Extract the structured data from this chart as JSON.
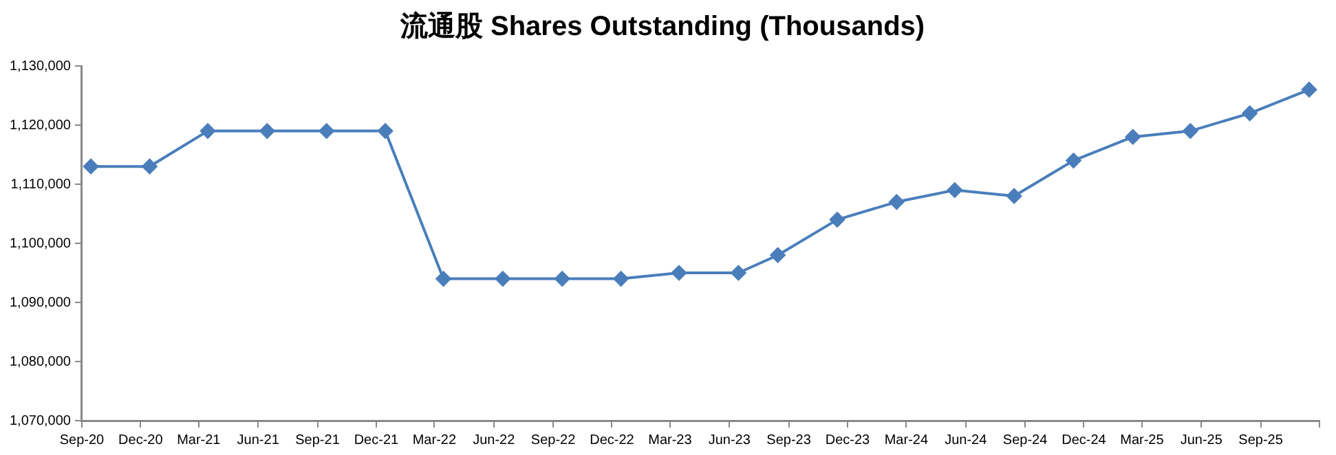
{
  "chart_data": {
    "type": "line",
    "title": "流通股 Shares Outstanding (Thousands)",
    "x": [
      "2020-09-15",
      "2020-12-15",
      "2021-03-15",
      "2021-06-15",
      "2021-09-15",
      "2021-12-15",
      "2022-03-15",
      "2022-06-15",
      "2022-09-15",
      "2022-12-15",
      "2023-03-15",
      "2023-06-15",
      "2023-08-15",
      "2023-11-15",
      "2024-02-15",
      "2024-05-15",
      "2024-08-15",
      "2024-11-15",
      "2025-02-15",
      "2025-05-15",
      "2025-08-15",
      "2025-11-15"
    ],
    "series": [
      {
        "color": "#4a7ebb",
        "values": [
          1113000,
          1113000,
          1119000,
          1119000,
          1119000,
          1119000,
          1094000,
          1094000,
          1094000,
          1094000,
          1095000,
          1095000,
          1098000,
          1104000,
          1107000,
          1109000,
          1108000,
          1114000,
          1118000,
          1119000,
          1122000,
          1126000
        ]
      }
    ],
    "xlim": [
      "2020-09-01",
      "2025-12-01"
    ],
    "xticks": [
      {
        "value": "2020-09-01",
        "label": "Sep-20"
      },
      {
        "value": "2020-12-01",
        "label": "Dec-20"
      },
      {
        "value": "2021-03-01",
        "label": "Mar-21"
      },
      {
        "value": "2021-06-01",
        "label": "Jun-21"
      },
      {
        "value": "2021-09-01",
        "label": "Sep-21"
      },
      {
        "value": "2021-12-01",
        "label": "Dec-21"
      },
      {
        "value": "2022-03-01",
        "label": "Mar-22"
      },
      {
        "value": "2022-06-01",
        "label": "Jun-22"
      },
      {
        "value": "2022-09-01",
        "label": "Sep-22"
      },
      {
        "value": "2022-12-01",
        "label": "Dec-22"
      },
      {
        "value": "2023-03-01",
        "label": "Mar-23"
      },
      {
        "value": "2023-06-01",
        "label": "Jun-23"
      },
      {
        "value": "2023-09-01",
        "label": "Sep-23"
      },
      {
        "value": "2023-12-01",
        "label": "Dec-23"
      },
      {
        "value": "2024-03-01",
        "label": "Mar-24"
      },
      {
        "value": "2024-06-01",
        "label": "Jun-24"
      },
      {
        "value": "2024-09-01",
        "label": "Sep-24"
      },
      {
        "value": "2024-12-01",
        "label": "Dec-24"
      },
      {
        "value": "2025-03-01",
        "label": "Mar-25"
      },
      {
        "value": "2025-06-01",
        "label": "Jun-25"
      },
      {
        "value": "2025-09-01",
        "label": "Sep-25"
      },
      {
        "value": "2025-12-01",
        "label": null
      }
    ],
    "ylim": [
      1070000,
      1130000
    ],
    "yticks": [
      {
        "value": 1070000,
        "label": "1,070,000"
      },
      {
        "value": 1080000,
        "label": "1,080,000"
      },
      {
        "value": 1090000,
        "label": "1,090,000"
      },
      {
        "value": 1100000,
        "label": "1,100,000"
      },
      {
        "value": 1110000,
        "label": "1,110,000"
      },
      {
        "value": 1120000,
        "label": "1,120,000"
      },
      {
        "value": 1130000,
        "label": "1,130,000"
      }
    ],
    "grid": false,
    "legend": false,
    "marker": "diamond",
    "line_style": "solid"
  }
}
